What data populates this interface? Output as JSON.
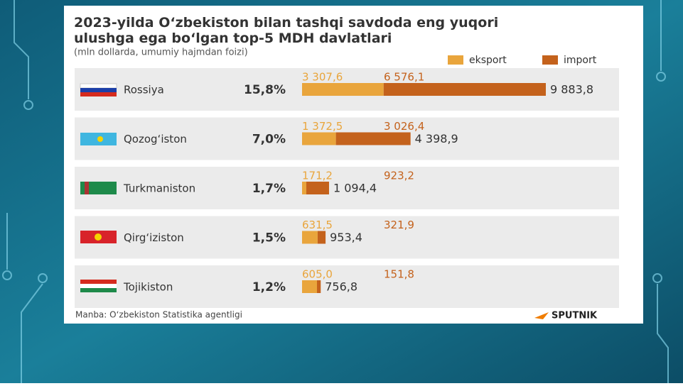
{
  "chart_data": {
    "type": "stacked-bar-horizontal",
    "title": "2023-yilda O‘zbekiston bilan tashqi savdoda eng yuqori ulushga ega bo‘lgan top-5 MDH davlatlari",
    "subtitle": "(mln dollarda, umumiy hajmdan foizi)",
    "categories": [
      "Rossiya",
      "Qozog‘iston",
      "Turkmaniston",
      "Qirg‘iziston",
      "Tojikiston"
    ],
    "shares": [
      15.8,
      7.0,
      1.7,
      1.5,
      1.2
    ],
    "share_labels": [
      "15,8%",
      "7,0%",
      "1,7%",
      "1,5%",
      "1,2%"
    ],
    "series": [
      {
        "name": "eksport",
        "color": "#e9a53c",
        "values": [
          3307.6,
          1372.5,
          171.2,
          631.5,
          605.0
        ],
        "value_labels": [
          "3 307,6",
          "1 372,5",
          "171,2",
          "631,5",
          "605,0"
        ]
      },
      {
        "name": "import",
        "color": "#c4621c",
        "values": [
          6576.1,
          3026.4,
          923.2,
          321.9,
          151.8
        ],
        "value_labels": [
          "6 576,1",
          "3 026,4",
          "923,2",
          "321,9",
          "151,8"
        ]
      }
    ],
    "totals": [
      9883.8,
      4398.9,
      1094.4,
      953.4,
      756.8
    ],
    "total_labels": [
      "9 883,8",
      "4 398,9",
      "1 094,4",
      "953,4",
      "756,8"
    ],
    "source": "Manba: O‘zbekiston Statistika agentligi",
    "brand": "SPUTNIK"
  }
}
